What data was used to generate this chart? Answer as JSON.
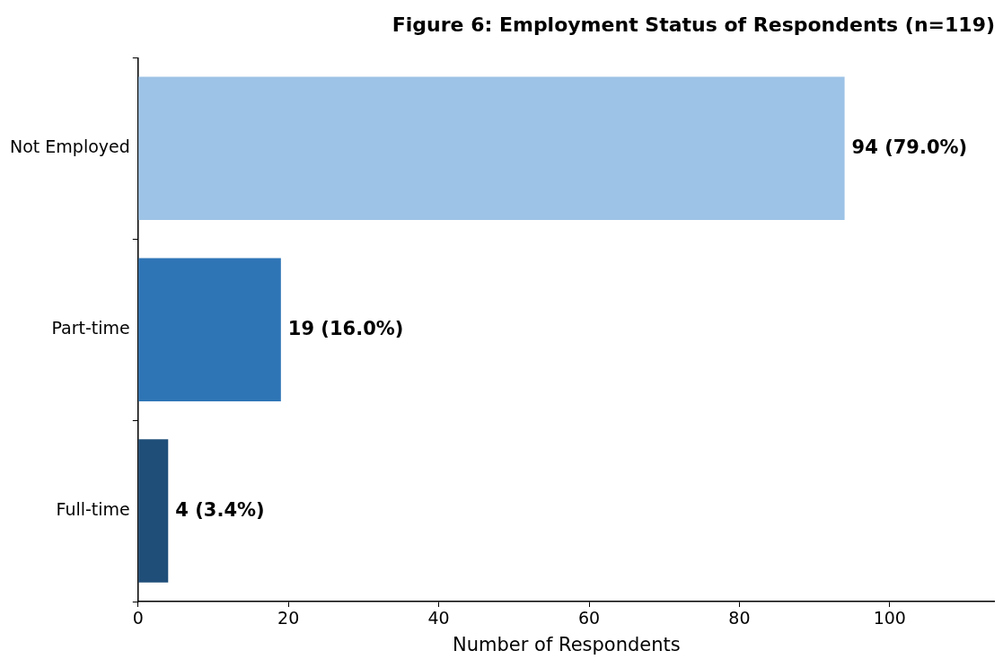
{
  "chart_data": {
    "type": "bar",
    "orientation": "horizontal",
    "title": "Figure 6: Employment Status of Respondents (n=119)",
    "xlabel": "Number of Respondents",
    "categories": [
      "Not Employed",
      "Part-time",
      "Full-time"
    ],
    "values": [
      94,
      19,
      4
    ],
    "colors": [
      "#9dc3e6",
      "#2e75b6",
      "#1f4e79"
    ],
    "value_labels": [
      "94 (79.0%)",
      "19 (16.0%)",
      "4 (3.4%)"
    ],
    "xlim": [
      0,
      114
    ],
    "xticks": [
      0,
      20,
      40,
      60,
      80,
      100
    ],
    "grid": false,
    "legend": false
  }
}
